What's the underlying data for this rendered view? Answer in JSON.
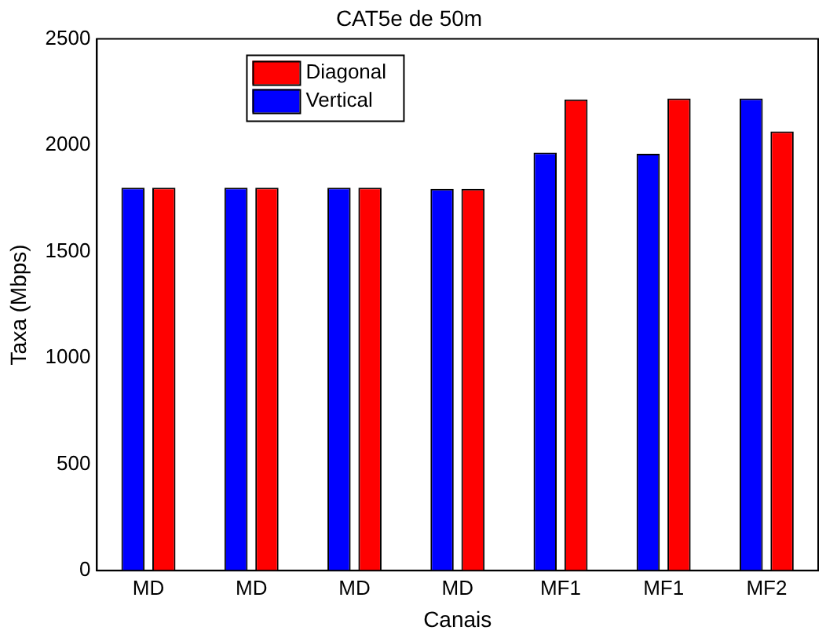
{
  "chart_data": {
    "type": "bar",
    "title": "CAT5e de 50m",
    "xlabel": "Canais",
    "ylabel": "Taxa (Mbps)",
    "categories": [
      "MD",
      "MD",
      "MD",
      "MD",
      "MF1",
      "MF1",
      "MF2"
    ],
    "series": [
      {
        "name": "Vertical",
        "color": "#0000ff",
        "values": [
          1800,
          1800,
          1800,
          1795,
          1965,
          1960,
          2220
        ]
      },
      {
        "name": "Diagonal",
        "color": "#ff0000",
        "values": [
          1800,
          1800,
          1800,
          1795,
          2215,
          2220,
          2065
        ]
      }
    ],
    "ylim": [
      0,
      2500
    ],
    "yticks": [
      0,
      500,
      1000,
      1500,
      2000,
      2500
    ],
    "grid": false,
    "legend": "top left"
  }
}
